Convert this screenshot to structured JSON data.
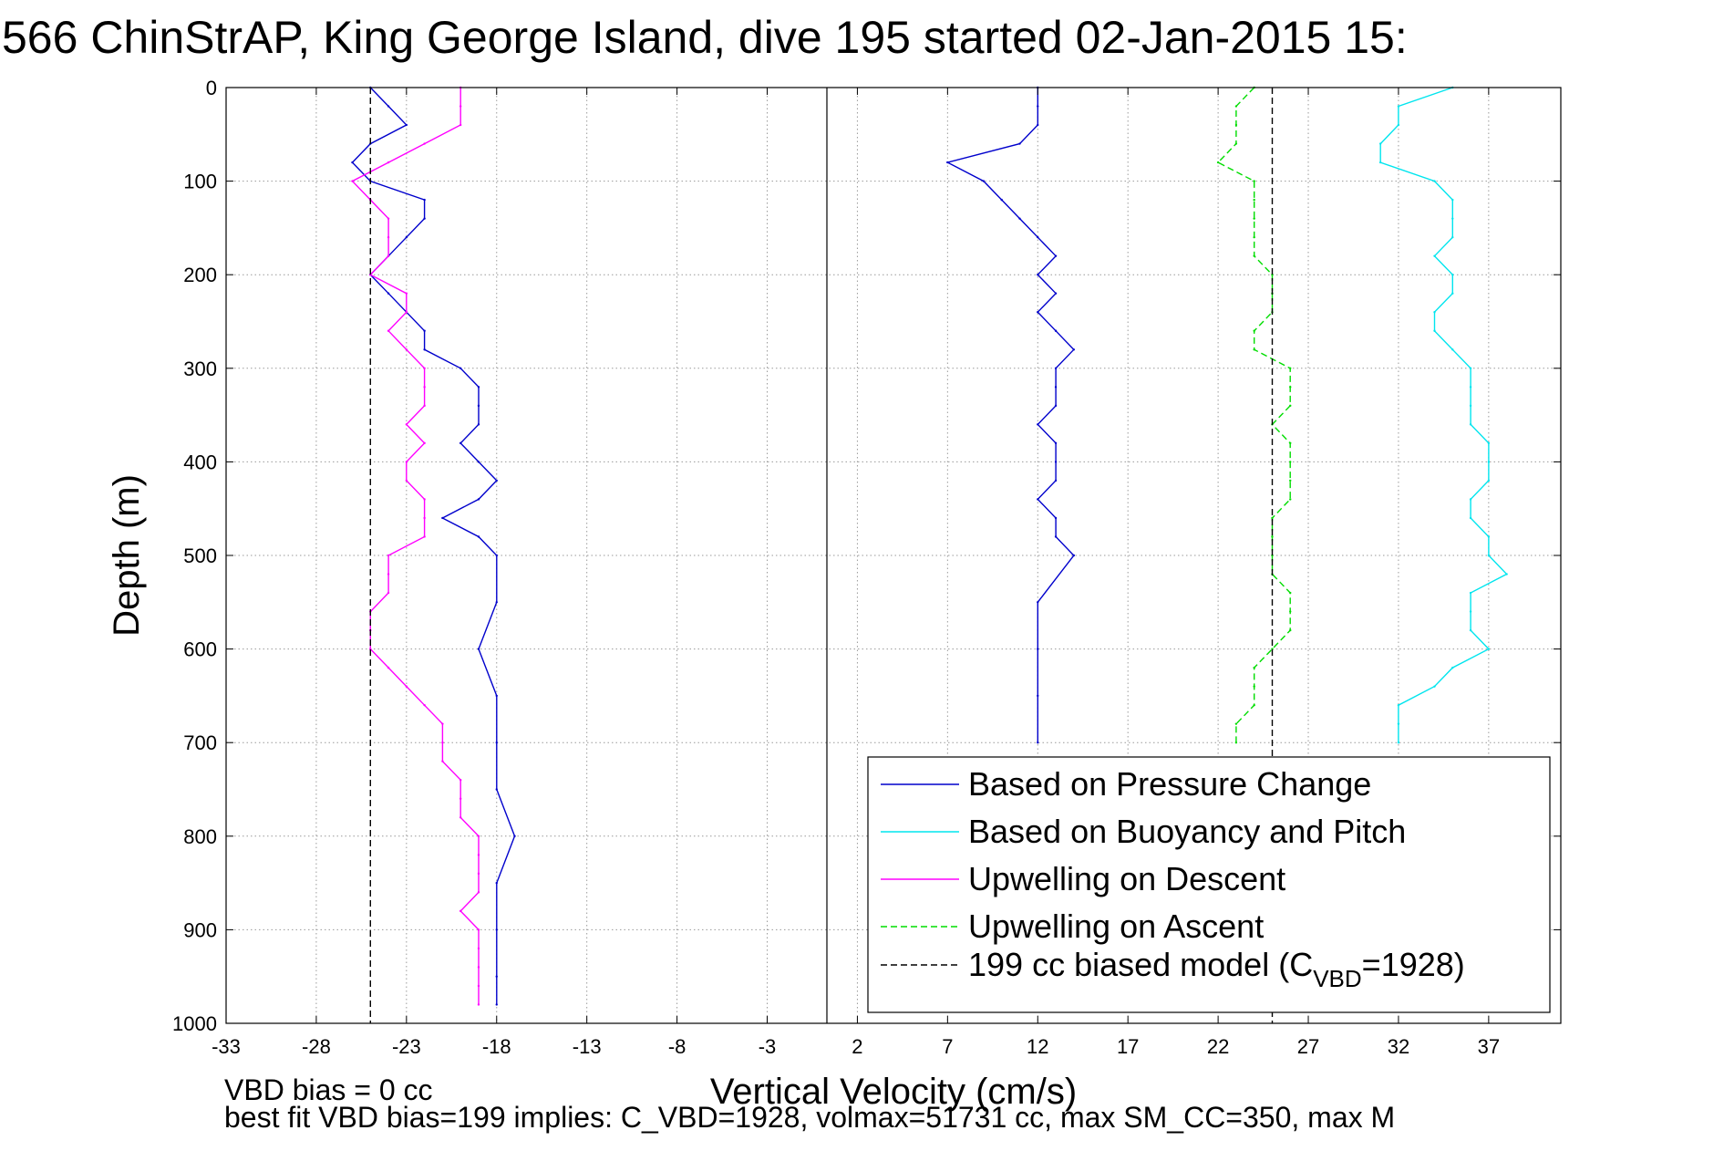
{
  "chart_data": {
    "type": "line",
    "title": "566 ChinStrAP, King George Island, dive 195 started 02-Jan-2015 15:",
    "xlabel": "Vertical Velocity (cm/s)",
    "ylabel": "Depth (m)",
    "xlim": [
      -33,
      41
    ],
    "ylim": [
      0,
      1000
    ],
    "y_reversed": true,
    "grid": true,
    "xticks": [
      -33,
      -28,
      -23,
      -18,
      -13,
      -8,
      -3,
      2,
      7,
      12,
      17,
      22,
      27,
      32,
      37
    ],
    "xtick_labels": [
      "-33",
      "-28",
      "-23",
      "-18",
      "-13",
      "-8",
      "-3",
      "2",
      "7",
      "12",
      "17",
      "22",
      "27",
      "32",
      "37"
    ],
    "yticks": [
      0,
      100,
      200,
      300,
      400,
      500,
      600,
      700,
      800,
      900,
      1000
    ],
    "ytick_labels": [
      "0",
      "100",
      "200",
      "300",
      "400",
      "500",
      "600",
      "700",
      "800",
      "900",
      "1000"
    ],
    "legend_position": "bottom-right",
    "series": [
      {
        "name": "Based on Pressure Change",
        "color": "#0000cc",
        "style": "solid",
        "segments": [
          {
            "depth": [
              0,
              20,
              40,
              60,
              80,
              100,
              120,
              140,
              160,
              180,
              200,
              220,
              240,
              260,
              280,
              300,
              320,
              340,
              360,
              380,
              400,
              420,
              440,
              460,
              480,
              500,
              550,
              600,
              650,
              700,
              750,
              800,
              850,
              900,
              950,
              980
            ],
            "velocity": [
              -25,
              -24,
              -23,
              -25,
              -26,
              -25,
              -22,
              -22,
              -23,
              -24,
              -25,
              -24,
              -23,
              -22,
              -22,
              -20,
              -19,
              -19,
              -19,
              -20,
              -19,
              -18,
              -19,
              -21,
              -19,
              -18,
              -18,
              -19,
              -18,
              -18,
              -18,
              -17,
              -18,
              -18,
              -18,
              -18
            ]
          },
          {
            "depth": [
              0,
              20,
              40,
              60,
              80,
              100,
              120,
              140,
              160,
              180,
              200,
              220,
              240,
              260,
              280,
              300,
              320,
              340,
              360,
              380,
              400,
              420,
              440,
              460,
              480,
              500,
              550,
              600,
              650,
              700
            ],
            "velocity": [
              12,
              12,
              12,
              11,
              7,
              9,
              10,
              11,
              12,
              13,
              12,
              13,
              12,
              13,
              14,
              13,
              13,
              13,
              12,
              13,
              13,
              13,
              12,
              13,
              13,
              14,
              12,
              12,
              12,
              12
            ]
          }
        ]
      },
      {
        "name": "Based on Buoyancy and Pitch",
        "color": "#00e5ee",
        "style": "solid",
        "segments": [
          {
            "depth": [
              0,
              20,
              40,
              60,
              80,
              100,
              120,
              140,
              160,
              180,
              200,
              220,
              240,
              260,
              280,
              300,
              320,
              340,
              360,
              380,
              400,
              420,
              440,
              460,
              480,
              500,
              520,
              540,
              560,
              580,
              600,
              620,
              640,
              660,
              680,
              700
            ],
            "velocity": [
              35,
              32,
              32,
              31,
              31,
              34,
              35,
              35,
              35,
              34,
              35,
              35,
              34,
              34,
              35,
              36,
              36,
              36,
              36,
              37,
              37,
              37,
              36,
              36,
              37,
              37,
              38,
              36,
              36,
              36,
              37,
              35,
              34,
              32,
              32,
              32
            ]
          }
        ]
      },
      {
        "name": "Upwelling on Descent",
        "color": "#ff00ff",
        "style": "solid",
        "segments": [
          {
            "depth": [
              0,
              20,
              40,
              60,
              80,
              100,
              120,
              140,
              160,
              180,
              200,
              220,
              240,
              260,
              280,
              300,
              320,
              340,
              360,
              380,
              400,
              420,
              440,
              460,
              480,
              500,
              520,
              540,
              560,
              580,
              600,
              620,
              640,
              660,
              680,
              700,
              720,
              740,
              760,
              780,
              800,
              820,
              840,
              860,
              880,
              900,
              920,
              940,
              960,
              980
            ],
            "velocity": [
              -20,
              -20,
              -20,
              -22,
              -24,
              -26,
              -25,
              -24,
              -24,
              -24,
              -25,
              -23,
              -23,
              -24,
              -23,
              -22,
              -22,
              -22,
              -23,
              -22,
              -23,
              -23,
              -22,
              -22,
              -22,
              -24,
              -24,
              -24,
              -25,
              -25,
              -25,
              -24,
              -23,
              -22,
              -21,
              -21,
              -21,
              -20,
              -20,
              -20,
              -19,
              -19,
              -19,
              -19,
              -20,
              -19,
              -19,
              -19,
              -19,
              -19
            ]
          }
        ]
      },
      {
        "name": "Upwelling on Ascent",
        "color": "#00dd00",
        "style": "dashed",
        "segments": [
          {
            "depth": [
              0,
              20,
              40,
              60,
              80,
              100,
              120,
              140,
              160,
              180,
              200,
              220,
              240,
              260,
              280,
              300,
              320,
              340,
              360,
              380,
              400,
              420,
              440,
              460,
              480,
              500,
              520,
              540,
              560,
              580,
              600,
              620,
              640,
              660,
              680,
              700
            ],
            "velocity": [
              24,
              23,
              23,
              23,
              22,
              24,
              24,
              24,
              24,
              24,
              25,
              25,
              25,
              24,
              24,
              26,
              26,
              26,
              25,
              26,
              26,
              26,
              26,
              25,
              25,
              25,
              25,
              26,
              26,
              26,
              25,
              24,
              24,
              24,
              23,
              23
            ]
          }
        ]
      },
      {
        "name": "199 cc biased model (C_VBD=1928)",
        "color": "#000000",
        "style": "dashed",
        "segments": [
          {
            "depth": [
              0,
              1000
            ],
            "velocity": [
              -25,
              -25
            ]
          },
          {
            "depth": [
              0,
              1000
            ],
            "velocity": [
              25,
              25
            ]
          }
        ]
      }
    ],
    "legend": [
      {
        "label": "Based on Pressure Change",
        "color": "#0000cc",
        "style": "solid"
      },
      {
        "label": "Based on Buoyancy and Pitch",
        "color": "#00e5ee",
        "style": "solid"
      },
      {
        "label": "Upwelling on Descent",
        "color": "#ff00ff",
        "style": "solid"
      },
      {
        "label": "Upwelling on Ascent",
        "color": "#00dd00",
        "style": "dashed"
      },
      {
        "label": "199 cc biased model (C",
        "subscript": "VBD",
        "suffix": "=1928)",
        "color": "#000000",
        "style": "dashed"
      }
    ],
    "annotations": [
      "VBD bias = 0 cc",
      "best fit VBD bias=199 implies: C_VBD=1928, volmax=51731 cc, max SM_CC=350, max M"
    ]
  }
}
